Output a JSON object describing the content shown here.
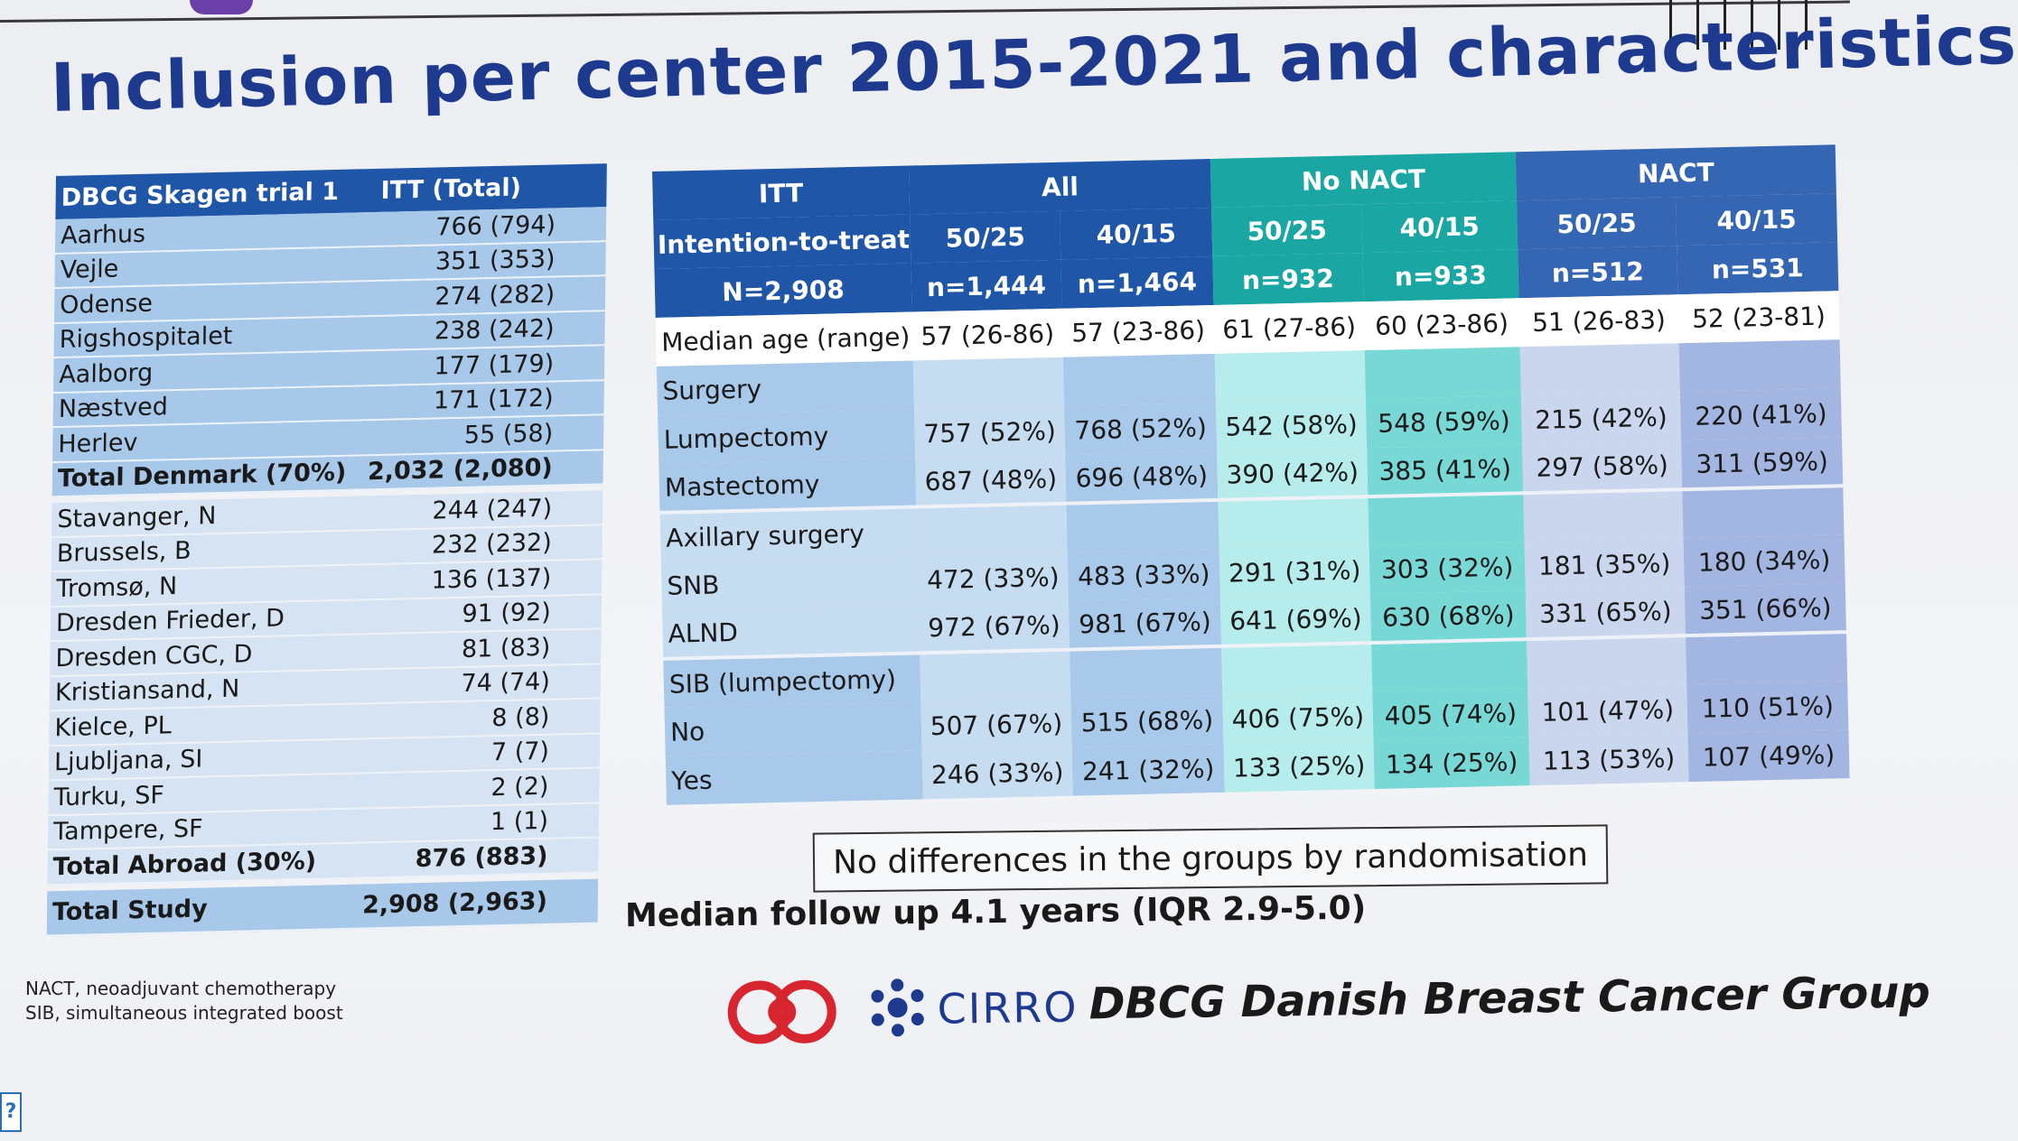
{
  "title": "Inclusion per center 2015-2021 and characteristics",
  "centers_table": {
    "header": [
      "DBCG Skagen trial 1",
      "ITT (Total)"
    ],
    "denmark_rows": [
      {
        "center": "Aarhus",
        "value": "766 (794)"
      },
      {
        "center": "Vejle",
        "value": "351 (353)"
      },
      {
        "center": "Odense",
        "value": "274 (282)"
      },
      {
        "center": "Rigshospitalet",
        "value": "238 (242)"
      },
      {
        "center": "Aalborg",
        "value": "177 (179)"
      },
      {
        "center": "Næstved",
        "value": "171 (172)"
      },
      {
        "center": "Herlev",
        "value": "55 (58)"
      }
    ],
    "total_denmark": {
      "center": "Total Denmark (70%)",
      "value": "2,032 (2,080)"
    },
    "abroad_rows": [
      {
        "center": "Stavanger, N",
        "value": "244 (247)"
      },
      {
        "center": "Brussels, B",
        "value": "232 (232)"
      },
      {
        "center": "Tromsø, N",
        "value": "136 (137)"
      },
      {
        "center": "Dresden Frieder, D",
        "value": "91 (92)"
      },
      {
        "center": "Dresden CGC, D",
        "value": "81 (83)"
      },
      {
        "center": "Kristiansand, N",
        "value": "74 (74)"
      },
      {
        "center": "Kielce, PL",
        "value": "8 (8)"
      },
      {
        "center": "Ljubljana, SI",
        "value": "7 (7)"
      },
      {
        "center": "Turku, SF",
        "value": "2 (2)"
      },
      {
        "center": "Tampere, SF",
        "value": "1 (1)"
      }
    ],
    "total_abroad": {
      "center": "Total Abroad (30%)",
      "value": "876 (883)"
    },
    "total_study": {
      "center": "Total Study",
      "value": "2,908 (2,963)"
    }
  },
  "characteristics": {
    "itt_header": {
      "line1": "ITT",
      "line2": "Intention-to-treat",
      "line3": "N=2,908"
    },
    "groups": {
      "all": "All",
      "no_nact": "No NACT",
      "nact": "NACT"
    },
    "arms": [
      {
        "label": "50/25",
        "n": "n=1,444"
      },
      {
        "label": "40/15",
        "n": "n=1,464"
      },
      {
        "label": "50/25",
        "n": "n=932"
      },
      {
        "label": "40/15",
        "n": "n=933"
      },
      {
        "label": "50/25",
        "n": "n=512"
      },
      {
        "label": "40/15",
        "n": "n=531"
      }
    ],
    "median_age": {
      "label": "Median age (range)",
      "values": [
        "57 (26-86)",
        "57 (23-86)",
        "61 (27-86)",
        "60 (23-86)",
        "51 (26-83)",
        "52 (23-81)"
      ]
    },
    "surgery": {
      "label": "Surgery",
      "rows": [
        {
          "label": "Lumpectomy",
          "values": [
            "757 (52%)",
            "768 (52%)",
            "542 (58%)",
            "548 (59%)",
            "215 (42%)",
            "220 (41%)"
          ]
        },
        {
          "label": "Mastectomy",
          "values": [
            "687 (48%)",
            "696 (48%)",
            "390 (42%)",
            "385 (41%)",
            "297 (58%)",
            "311 (59%)"
          ]
        }
      ]
    },
    "axillary": {
      "label": "Axillary surgery",
      "rows": [
        {
          "label": "SNB",
          "values": [
            "472 (33%)",
            "483 (33%)",
            "291 (31%)",
            "303 (32%)",
            "181 (35%)",
            "180 (34%)"
          ]
        },
        {
          "label": "ALND",
          "values": [
            "972 (67%)",
            "981 (67%)",
            "641 (69%)",
            "630 (68%)",
            "331 (65%)",
            "351 (66%)"
          ]
        }
      ]
    },
    "sib": {
      "label": "SIB (lumpectomy)",
      "rows": [
        {
          "label": "No",
          "values": [
            "507 (67%)",
            "515 (68%)",
            "406 (75%)",
            "405 (74%)",
            "101 (47%)",
            "110 (51%)"
          ]
        },
        {
          "label": "Yes",
          "values": [
            "246 (33%)",
            "241 (32%)",
            "133 (25%)",
            "134 (25%)",
            "113 (53%)",
            "107 (49%)"
          ]
        }
      ]
    }
  },
  "note_box": "No differences in the groups by randomisation",
  "followup": "Median follow up 4.1 years (IQR 2.9-5.0)",
  "footnotes": [
    "NACT, neoadjuvant chemotherapy",
    "SIB, simultaneous integrated boost"
  ],
  "logos": {
    "cirro": "CIRRO",
    "dbcg": "DBCG Danish Breast Cancer Group"
  },
  "help_glyph": "?",
  "colors": {
    "title": "#1d3a8f",
    "header_blue": "#1f56a8",
    "header_teal": "#1aa7a3",
    "nact_blue": "#3566b3",
    "logo_red": "#d7262f"
  }
}
